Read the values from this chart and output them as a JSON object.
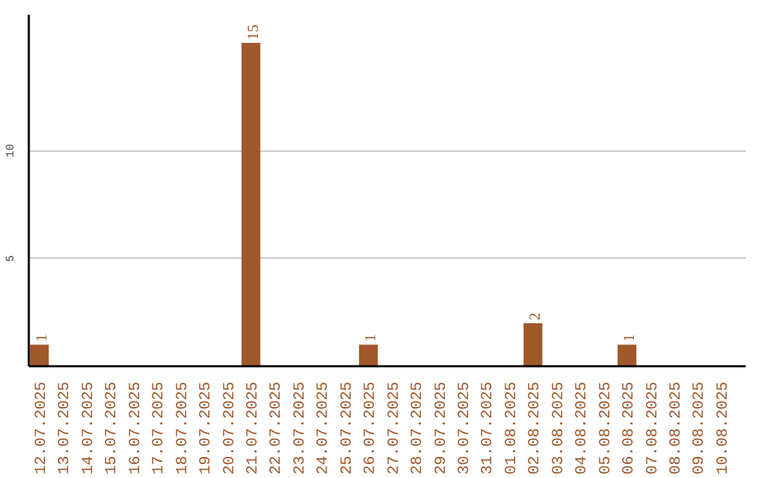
{
  "chart_data": {
    "type": "bar",
    "categories": [
      "12.07.2025",
      "13.07.2025",
      "14.07.2025",
      "15.07.2025",
      "16.07.2025",
      "17.07.2025",
      "18.07.2025",
      "19.07.2025",
      "20.07.2025",
      "21.07.2025",
      "22.07.2025",
      "23.07.2025",
      "24.07.2025",
      "25.07.2025",
      "26.07.2025",
      "27.07.2025",
      "28.07.2025",
      "29.07.2025",
      "30.07.2025",
      "31.07.2025",
      "01.08.2025",
      "02.08.2025",
      "03.08.2025",
      "04.08.2025",
      "05.08.2025",
      "06.08.2025",
      "07.08.2025",
      "08.08.2025",
      "09.08.2025",
      "10.08.2025"
    ],
    "values": [
      1,
      0,
      0,
      0,
      0,
      0,
      0,
      0,
      0,
      15,
      0,
      0,
      0,
      0,
      1,
      0,
      0,
      0,
      0,
      0,
      0,
      2,
      0,
      0,
      0,
      1,
      0,
      0,
      0,
      0
    ],
    "value_labels": [
      "1",
      null,
      null,
      null,
      null,
      null,
      null,
      null,
      null,
      "15",
      null,
      null,
      null,
      null,
      "1",
      null,
      null,
      null,
      null,
      null,
      null,
      "2",
      null,
      null,
      null,
      "1",
      null,
      null,
      null,
      null
    ],
    "color": "#a0572a",
    "ylim": [
      0,
      16.3
    ],
    "yticks": [
      5,
      10
    ],
    "grid": "y"
  }
}
